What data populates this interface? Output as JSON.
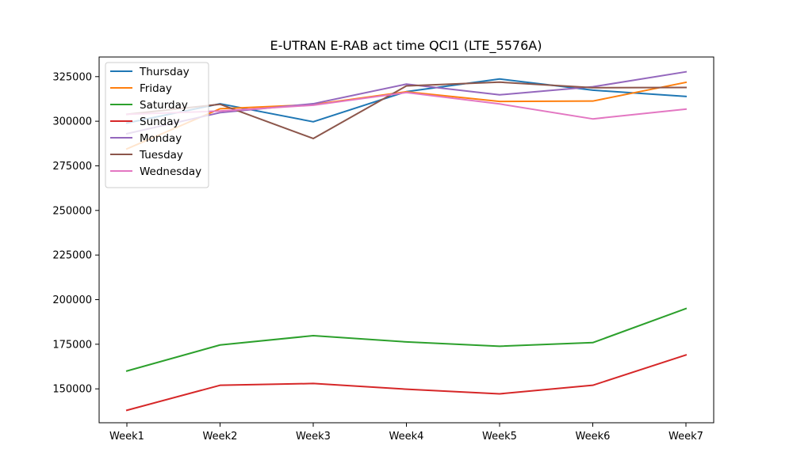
{
  "chart_data": {
    "type": "line",
    "title": "E-UTRAN E-RAB act time QCI1 (LTE_5576A)",
    "xlabel": "",
    "ylabel": "",
    "categories": [
      "Week1",
      "Week2",
      "Week3",
      "Week4",
      "Week5",
      "Week6",
      "Week7"
    ],
    "ylim": [
      131000,
      336000
    ],
    "yticks": [
      150000,
      175000,
      200000,
      225000,
      250000,
      275000,
      300000,
      325000
    ],
    "ytick_labels": [
      "150000",
      "175000",
      "200000",
      "225000",
      "250000",
      "275000",
      "300000",
      "325000"
    ],
    "grid": false,
    "legend_position": "upper-left",
    "series": [
      {
        "name": "Thursday",
        "color": "#1f77b4",
        "values": [
          299000,
          309800,
          299700,
          316600,
          323700,
          317400,
          313900
        ]
      },
      {
        "name": "Friday",
        "color": "#ff7f0e",
        "values": [
          284500,
          307000,
          309300,
          316500,
          311100,
          311300,
          321800
        ]
      },
      {
        "name": "Saturday",
        "color": "#2ca02c",
        "values": [
          160000,
          174600,
          179800,
          176300,
          173900,
          175900,
          195000
        ]
      },
      {
        "name": "Sunday",
        "color": "#d62728",
        "values": [
          138000,
          152000,
          153000,
          149800,
          147200,
          152000,
          169000
        ]
      },
      {
        "name": "Monday",
        "color": "#9467bd",
        "values": [
          293000,
          304800,
          309800,
          320800,
          314800,
          319300,
          327700
        ]
      },
      {
        "name": "Tuesday",
        "color": "#8c564b",
        "values": [
          303900,
          309500,
          290300,
          319800,
          321900,
          318800,
          318900
        ]
      },
      {
        "name": "Wednesday",
        "color": "#e377c2",
        "values": [
          303900,
          305700,
          309000,
          316100,
          309700,
          301300,
          306800
        ]
      }
    ]
  }
}
